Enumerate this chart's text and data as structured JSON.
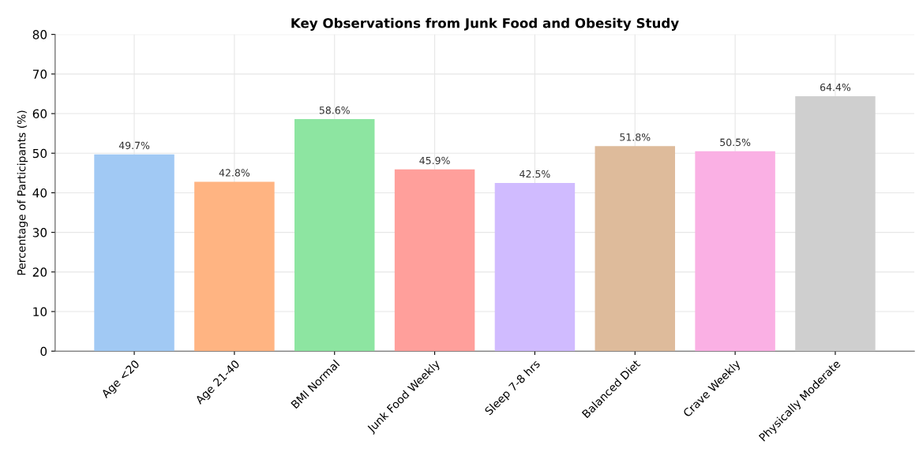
{
  "chart_data": {
    "type": "bar",
    "title": "Key Observations from Junk Food and Obesity Study",
    "ylabel": "Percentage of Participants (%)",
    "categories": [
      "Age <20",
      "Age 21-40",
      "BMI Normal",
      "Junk Food Weekly",
      "Sleep 7-8 hrs",
      "Balanced Diet",
      "Crave Weekly",
      "Physically Moderate"
    ],
    "values": [
      49.7,
      42.8,
      58.6,
      45.9,
      42.5,
      51.8,
      50.5,
      64.4
    ],
    "colors": [
      "#a1c9f4",
      "#ffb482",
      "#8de5a1",
      "#ff9f9b",
      "#d0bbff",
      "#debb9b",
      "#fab0e4",
      "#cfcfcf"
    ],
    "value_labels": [
      "49.7%",
      "42.8%",
      "58.6%",
      "45.9%",
      "42.5%",
      "51.8%",
      "50.5%",
      "64.4%"
    ],
    "ylim": [
      0,
      80
    ],
    "yticks": [
      0,
      10,
      20,
      30,
      40,
      50,
      60,
      70,
      80
    ],
    "grid": true
  }
}
